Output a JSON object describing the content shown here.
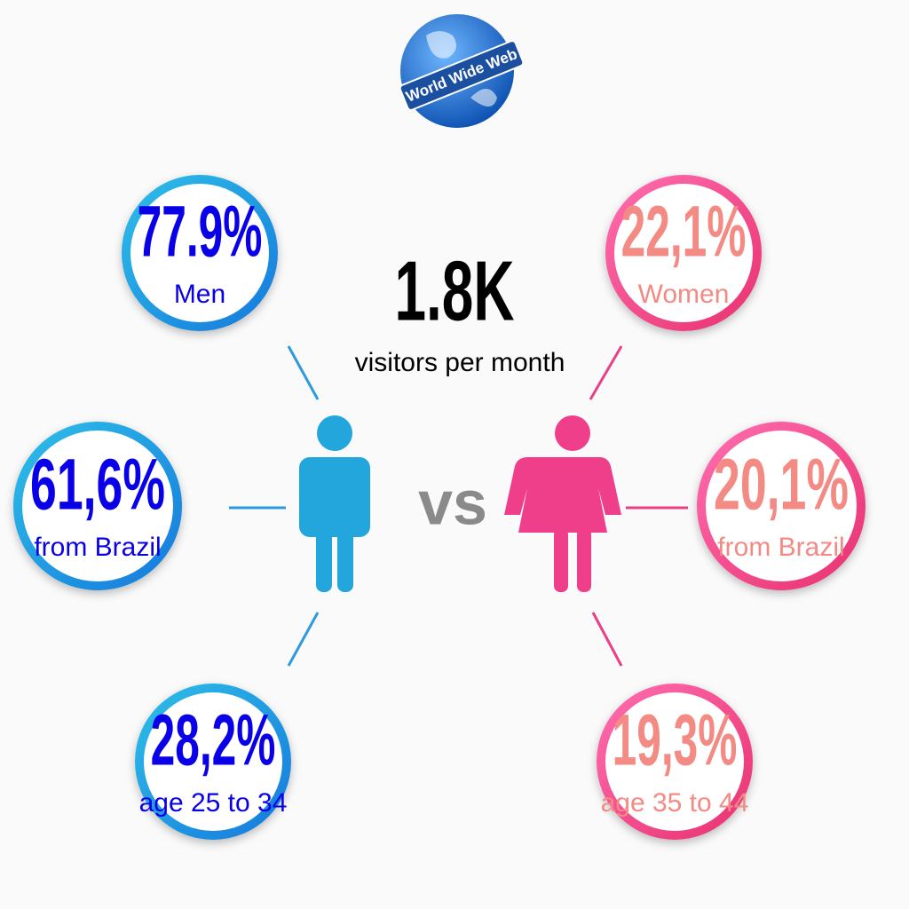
{
  "logo": {
    "label": "World Wide Web"
  },
  "headline": {
    "value": "1.8K",
    "label": "visitors per month"
  },
  "versus": "vs",
  "men": {
    "stats": [
      {
        "value": "77.9%",
        "label": "Men"
      },
      {
        "value": "61,6%",
        "label": "from Brazil"
      },
      {
        "value": "28,2%",
        "label": "age 25 to 34"
      }
    ]
  },
  "women": {
    "stats": [
      {
        "value": "22,1%",
        "label": "Women"
      },
      {
        "value": "20,1%",
        "label": "from Brazil"
      },
      {
        "value": "19,3%",
        "label": "age 35 to 44"
      }
    ]
  }
}
